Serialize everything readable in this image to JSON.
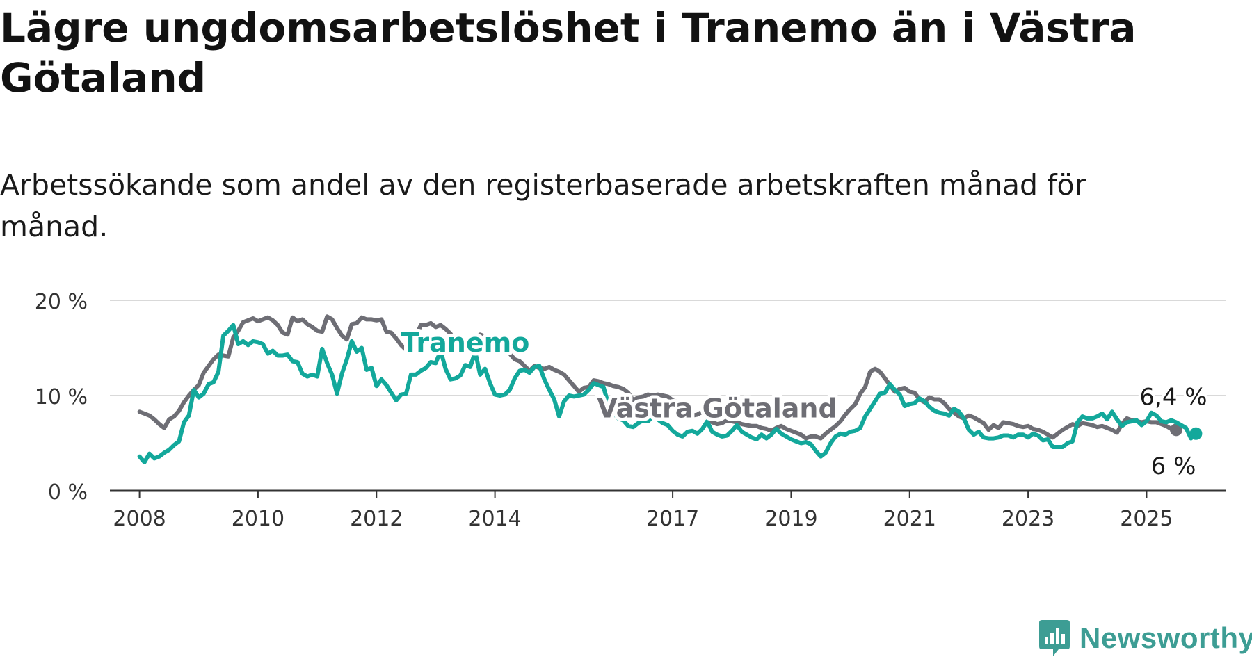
{
  "title": "Lägre ungdomsarbetslöshet i Tranemo än i Västra Götaland",
  "subtitle": "Arbetssökande som andel av den registerbaserade arbetskraften månad för månad.",
  "brand": {
    "name": "Newsworthy",
    "logo_icon": "newsworthy-logo-icon"
  },
  "colors": {
    "tranemo": "#13a89b",
    "vastra_gotaland": "#6e6e75",
    "grid": "#d9d9d9",
    "axis": "#333333",
    "text": "#1a1a1a",
    "brand": "#3d9d94"
  },
  "chart_data": {
    "type": "line",
    "title": "Lägre ungdomsarbetslöshet i Tranemo än i Västra Götaland",
    "subtitle": "Arbetssökande som andel av den registerbaserade arbetskraften månad för månad.",
    "xlabel": "",
    "ylabel": "",
    "x_start": "2008-01",
    "x_end": "2025-06",
    "x_interval": "month",
    "xlim": [
      "2007-07",
      "2026-05"
    ],
    "ylim": [
      0,
      20
    ],
    "y_ticks": [
      0,
      10,
      20
    ],
    "y_tick_labels": [
      "0 %",
      "10 %",
      "20 %"
    ],
    "x_ticks": [
      {
        "date": "2008-01",
        "label": "2008"
      },
      {
        "date": "2010-01",
        "label": "2010"
      },
      {
        "date": "2012-01",
        "label": "2012"
      },
      {
        "date": "2014-01",
        "label": "2014"
      },
      {
        "date": "2017-01",
        "label": "2017"
      },
      {
        "date": "2019-01",
        "label": "2019"
      },
      {
        "date": "2021-01",
        "label": "2021"
      },
      {
        "date": "2023-01",
        "label": "2023"
      },
      {
        "date": "2025-01",
        "label": "2025"
      }
    ],
    "grid": "horizontal",
    "legend": "direct labels on lines",
    "series": [
      {
        "name": "Västra Götaland",
        "color": "#6e6e75",
        "label": {
          "text": "Västra Götaland",
          "date": "2017-10",
          "value": 7.7
        },
        "end_label": "6,4 %",
        "values": [
          8.3,
          8.1,
          7.9,
          7.5,
          7.0,
          6.6,
          7.5,
          7.8,
          8.4,
          9.3,
          10.0,
          10.6,
          11.1,
          12.4,
          13.1,
          13.8,
          14.3,
          14.2,
          14.1,
          16.1,
          16.8,
          17.7,
          17.9,
          18.1,
          17.8,
          18.0,
          18.2,
          17.9,
          17.4,
          16.6,
          16.4,
          18.2,
          17.8,
          18.0,
          17.5,
          17.2,
          16.8,
          16.7,
          18.3,
          18.0,
          17.1,
          16.3,
          15.9,
          17.5,
          17.6,
          18.2,
          18.0,
          18.0,
          17.9,
          18.0,
          16.7,
          16.6,
          16.0,
          15.3,
          14.8,
          16.2,
          16.3,
          17.4,
          17.4,
          17.6,
          17.2,
          17.4,
          17.0,
          16.5,
          15.6,
          15.4,
          14.9,
          16.0,
          15.8,
          16.4,
          16.2,
          15.9,
          15.5,
          15.3,
          14.7,
          14.4,
          13.8,
          13.6,
          13.1,
          12.6,
          13.1,
          12.9,
          12.8,
          13.0,
          12.7,
          12.5,
          12.2,
          11.6,
          11.0,
          10.4,
          10.8,
          10.9,
          11.6,
          11.5,
          11.3,
          11.2,
          11.0,
          10.9,
          10.7,
          10.3,
          9.5,
          9.8,
          9.9,
          10.1,
          10.0,
          10.1,
          10.0,
          9.9,
          9.5,
          9.3,
          8.9,
          8.4,
          7.9,
          8.0,
          8.3,
          7.7,
          7.2,
          7.0,
          7.1,
          7.4,
          7.3,
          7.2,
          7.0,
          6.9,
          6.8,
          6.8,
          6.6,
          6.5,
          6.3,
          6.6,
          6.8,
          6.5,
          6.3,
          6.1,
          5.9,
          5.5,
          5.7,
          5.7,
          5.5,
          6.0,
          6.4,
          6.8,
          7.3,
          8.0,
          8.6,
          9.1,
          10.2,
          10.9,
          12.5,
          12.8,
          12.5,
          11.8,
          11.1,
          10.4,
          10.7,
          10.8,
          10.4,
          10.3,
          9.6,
          9.3,
          9.8,
          9.6,
          9.6,
          9.2,
          8.6,
          8.2,
          7.8,
          7.6,
          7.9,
          7.7,
          7.4,
          7.1,
          6.4,
          6.9,
          6.6,
          7.2,
          7.1,
          7.0,
          6.8,
          6.7,
          6.8,
          6.5,
          6.4,
          6.2,
          5.9,
          5.6,
          6.0,
          6.4,
          6.7,
          7.0,
          6.8,
          7.1,
          7.0,
          6.9,
          6.7,
          6.8,
          6.6,
          6.4,
          6.1,
          7.0,
          7.6,
          7.4,
          7.3,
          7.2,
          7.3,
          7.2,
          7.2,
          7.0,
          6.8,
          6.5,
          6.4
        ]
      },
      {
        "name": "Tranemo",
        "color": "#13a89b",
        "label": {
          "text": "Tranemo",
          "date": "2013-07",
          "value": 14.6
        },
        "end_label": "6 %",
        "values": [
          3.6,
          3.0,
          3.9,
          3.4,
          3.6,
          4.0,
          4.3,
          4.8,
          5.2,
          7.2,
          7.9,
          10.6,
          9.8,
          10.2,
          11.2,
          11.4,
          12.5,
          16.3,
          16.8,
          17.4,
          15.4,
          15.7,
          15.3,
          15.7,
          15.6,
          15.4,
          14.4,
          14.7,
          14.2,
          14.2,
          14.3,
          13.6,
          13.5,
          12.3,
          12.0,
          12.2,
          12.0,
          14.9,
          13.4,
          12.2,
          10.2,
          12.3,
          13.8,
          15.7,
          14.6,
          15.0,
          12.7,
          12.9,
          11.0,
          11.7,
          11.1,
          10.3,
          9.5,
          10.1,
          10.2,
          12.2,
          12.2,
          12.6,
          12.9,
          13.5,
          13.4,
          14.7,
          12.8,
          11.7,
          11.8,
          12.1,
          13.2,
          13.0,
          14.6,
          12.2,
          12.8,
          11.3,
          10.1,
          10.0,
          10.1,
          10.6,
          11.8,
          12.6,
          12.7,
          12.4,
          13.0,
          13.1,
          11.7,
          10.6,
          9.6,
          7.8,
          9.4,
          10.0,
          9.9,
          10.0,
          10.1,
          10.6,
          11.3,
          11.1,
          10.9,
          9.0,
          8.2,
          7.6,
          7.4,
          6.8,
          6.7,
          7.1,
          7.4,
          7.3,
          7.8,
          7.5,
          7.1,
          6.9,
          6.3,
          5.9,
          5.7,
          6.2,
          6.3,
          6.0,
          6.5,
          7.3,
          6.2,
          5.9,
          5.7,
          5.8,
          6.3,
          6.9,
          6.2,
          5.9,
          5.6,
          5.4,
          5.9,
          5.5,
          5.9,
          6.5,
          6.0,
          5.7,
          5.4,
          5.2,
          5.0,
          5.1,
          4.9,
          4.2,
          3.6,
          4.0,
          5.0,
          5.7,
          6.0,
          5.9,
          6.2,
          6.3,
          6.6,
          7.8,
          8.6,
          9.4,
          10.2,
          10.3,
          11.2,
          10.6,
          10.1,
          8.9,
          9.1,
          9.2,
          9.7,
          9.4,
          8.8,
          8.4,
          8.2,
          8.1,
          7.9,
          8.6,
          8.3,
          7.6,
          6.4,
          5.9,
          6.2,
          5.6,
          5.5,
          5.5,
          5.6,
          5.8,
          5.8,
          5.6,
          5.9,
          5.9,
          5.6,
          6.0,
          5.8,
          5.3,
          5.4,
          4.6,
          4.6,
          4.6,
          5.0,
          5.2,
          7.2,
          7.8,
          7.6,
          7.6,
          7.8,
          8.1,
          7.5,
          8.3,
          7.5,
          6.8,
          7.2,
          7.3,
          7.4,
          6.9,
          7.3,
          8.2,
          7.9,
          7.3,
          7.2,
          7.4,
          7.2,
          6.9,
          6.6,
          5.5,
          6.0
        ]
      }
    ]
  }
}
